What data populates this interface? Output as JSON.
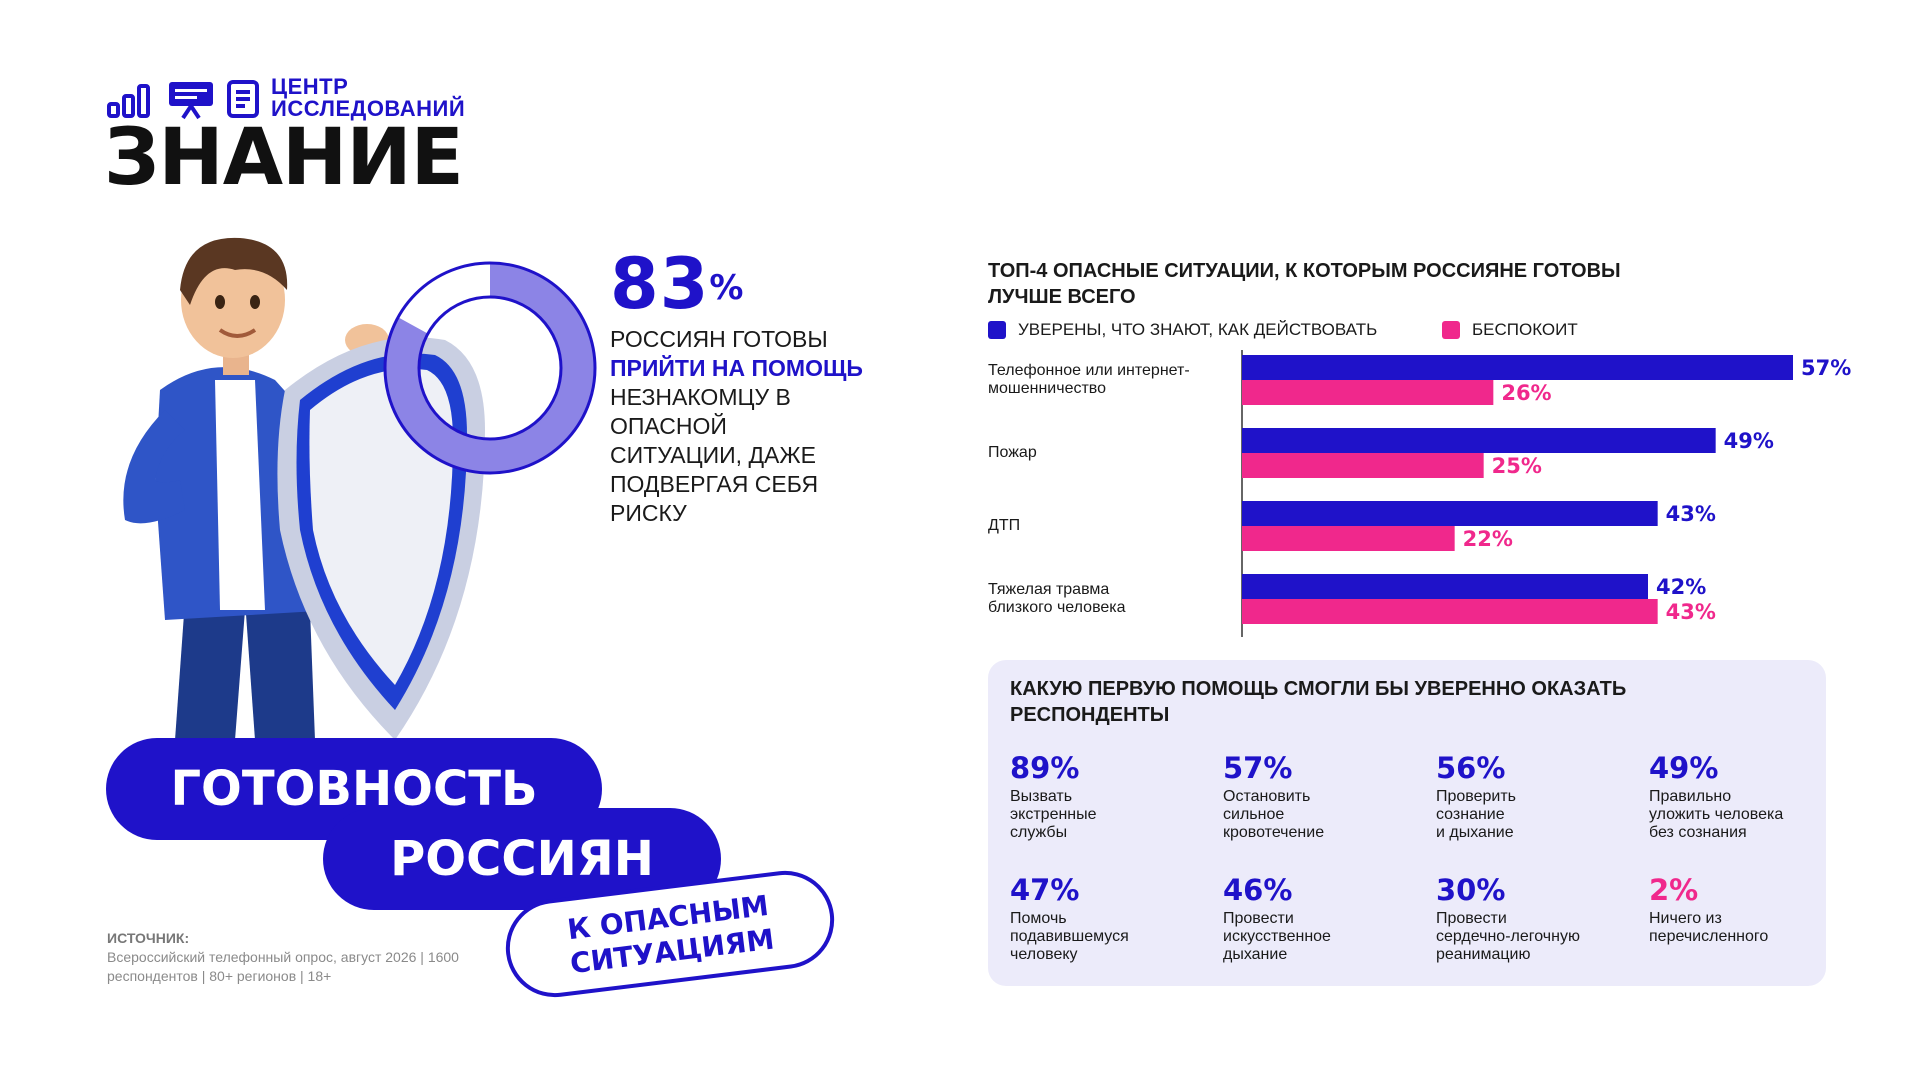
{
  "logo": {
    "small_line1": "ЦЕНТР",
    "small_line2": "ИССЛЕДОВАНИЙ",
    "big": "ЗНАНИЕ"
  },
  "headline_stat": {
    "value": "83",
    "unit": "%",
    "desc_pre": "РОССИЯН ГОТОВЫ",
    "desc_highlight": "ПРИЙТИ НА ПОМОЩЬ",
    "desc_post": "НЕЗНАКОМЦУ В ОПАСНОЙ СИТУАЦИИ, ДАЖЕ ПОДВЕРГАЯ СЕБЯ РИСКУ",
    "fraction": 0.83
  },
  "title": {
    "line1": "ГОТОВНОСТЬ",
    "line2": "РОССИЯН",
    "line3a": "К ОПАСНЫМ",
    "line3b": "СИТУАЦИЯМ"
  },
  "source": {
    "heading": "ИСТОЧНИК:",
    "text": "Всероссийский телефонный опрос, август 2026 | 1600 респондентов | 80+ регионов | 18+"
  },
  "chart_data": {
    "type": "bar",
    "orientation": "horizontal",
    "title": "ТОП-4 ОПАСНЫЕ СИТУАЦИИ, К КОТОРЫМ РОССИЯНЕ ГОТОВЫ ЛУЧШЕ ВСЕГО",
    "categories": [
      "Телефонное или интернет-\nмошенничество",
      "Пожар",
      "ДТП",
      "Тяжелая травма\nблизкого человека"
    ],
    "series": [
      {
        "name": "УВЕРЕНЫ, ЧТО ЗНАЮТ, КАК ДЕЙСТВОВАТЬ",
        "color": "#1f12c9",
        "values": [
          57,
          49,
          43,
          42
        ]
      },
      {
        "name": "БЕСПОКОИТ",
        "color": "#f0288c",
        "values": [
          26,
          25,
          22,
          43
        ]
      }
    ],
    "value_suffix": "%",
    "xlim": [
      0,
      60
    ],
    "legend": "top",
    "grid": false
  },
  "first_aid": {
    "title": "КАКУЮ ПЕРВУЮ ПОМОЩЬ СМОГЛИ БЫ УВЕРЕННО ОКАЗАТЬ РЕСПОНДЕНТЫ",
    "items": [
      {
        "value": "89%",
        "text": "Вызвать\nэкстренные\nслужбы"
      },
      {
        "value": "57%",
        "text": "Остановить\nсильное\nкровотечение"
      },
      {
        "value": "56%",
        "text": "Проверить\nсознание\nи дыхание"
      },
      {
        "value": "49%",
        "text": "Правильно\nуложить человека\nбез сознания"
      },
      {
        "value": "47%",
        "text": "Помочь\nподавившемуся\nчеловеку"
      },
      {
        "value": "46%",
        "text": "Провести\nискусственное\nдыхание"
      },
      {
        "value": "30%",
        "text": "Провести\nсердечно-легочную\nреанимацию"
      },
      {
        "value": "2%",
        "text": "Ничего из\nперечисленного",
        "accent": "pink"
      }
    ]
  },
  "colors": {
    "primary": "#1f12c9",
    "accent": "#f0288c",
    "donut_light": "#8c84e6",
    "panel_bg": "#ecebfa"
  }
}
